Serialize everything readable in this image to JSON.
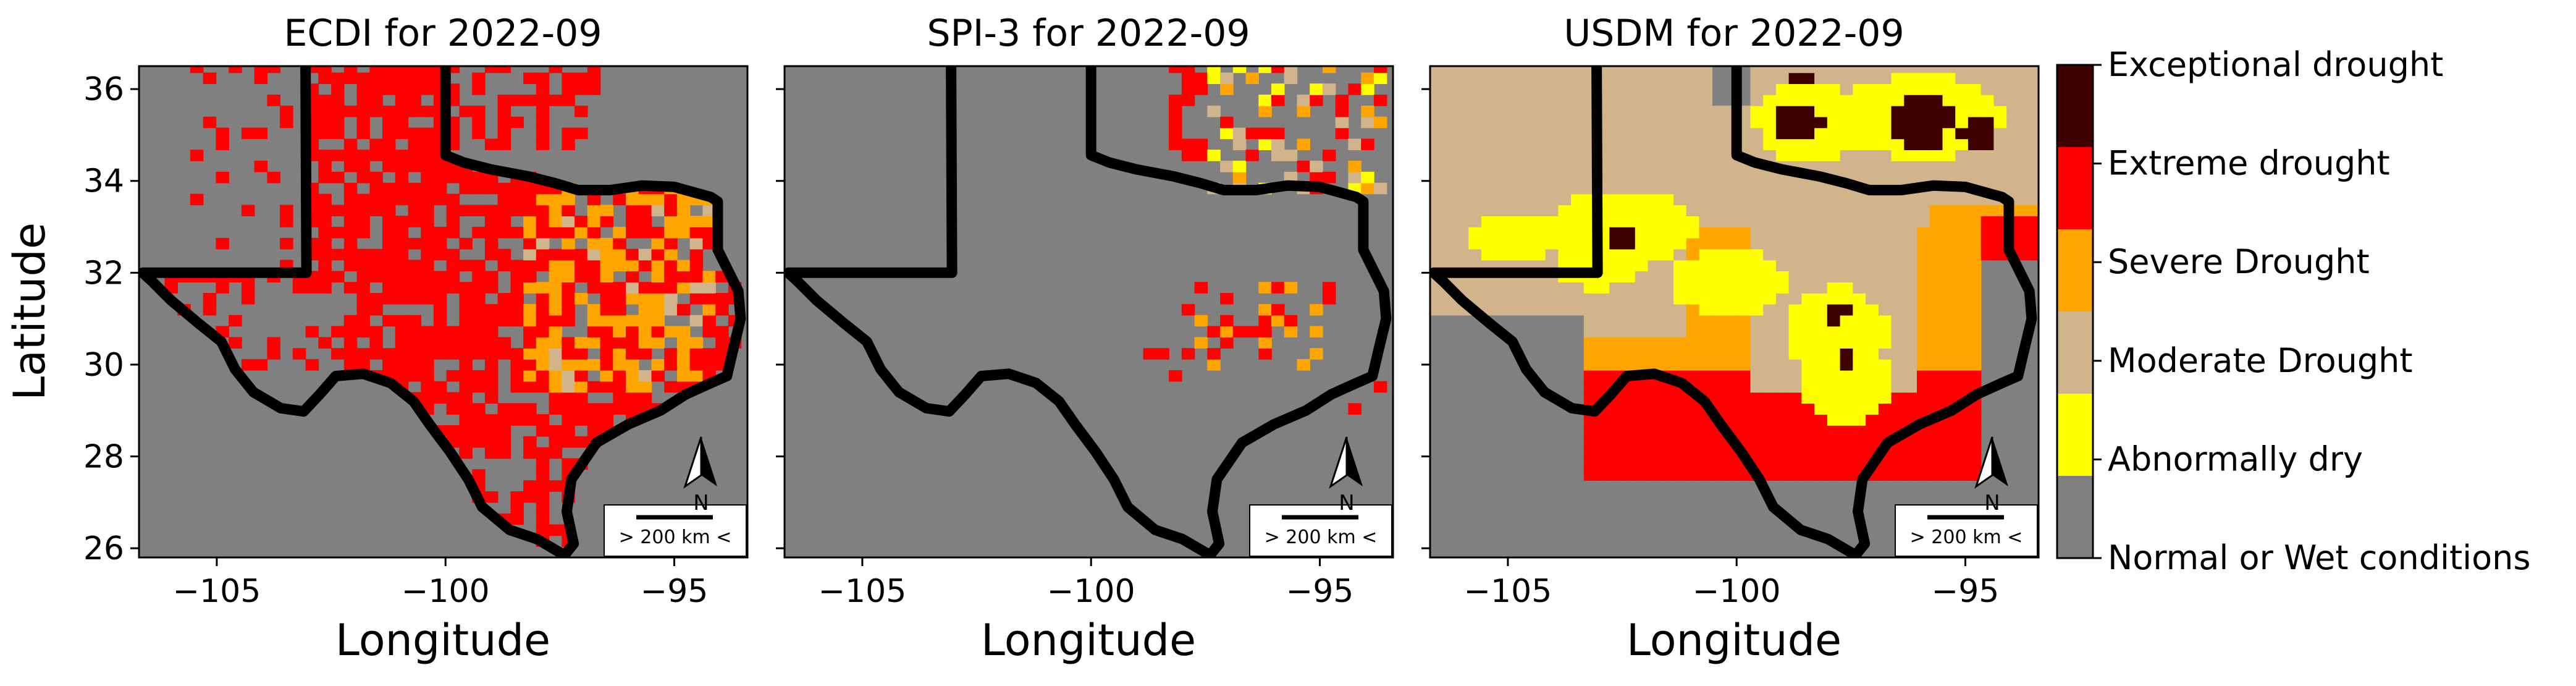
{
  "figure": {
    "ylabel": "Latitude",
    "xlabel": "Longitude"
  },
  "chart_data": [
    {
      "type": "heatmap",
      "title": "ECDI for 2022-09",
      "xlabel": "Longitude",
      "ylabel": "Latitude",
      "xlim": [
        -106.7,
        -93.4
      ],
      "ylim": [
        25.8,
        36.5
      ],
      "x_ticks": [
        -105,
        -100,
        -95
      ],
      "y_ticks": [
        26,
        28,
        30,
        32,
        34,
        36
      ],
      "x_tick_labels": [
        "−105",
        "−100",
        "−95"
      ],
      "y_tick_labels": [
        "26",
        "28",
        "30",
        "32",
        "34",
        "36"
      ],
      "scalebar_label": "> 200 km <",
      "north_label": "N",
      "scene": "ecdi"
    },
    {
      "type": "heatmap",
      "title": "SPI-3 for 2022-09",
      "xlabel": "Longitude",
      "xlim": [
        -106.7,
        -93.4
      ],
      "ylim": [
        25.8,
        36.5
      ],
      "x_ticks": [
        -105,
        -100,
        -95
      ],
      "x_tick_labels": [
        "−105",
        "−100",
        "−95"
      ],
      "scalebar_label": "> 200 km <",
      "north_label": "N",
      "scene": "spi"
    },
    {
      "type": "heatmap",
      "title": "USDM for 2022-09",
      "xlabel": "Longitude",
      "xlim": [
        -106.7,
        -93.4
      ],
      "ylim": [
        25.8,
        36.5
      ],
      "x_ticks": [
        -105,
        -100,
        -95
      ],
      "x_tick_labels": [
        "−105",
        "−100",
        "−95"
      ],
      "scalebar_label": "> 200 km <",
      "north_label": "N",
      "scene": "usdm"
    }
  ],
  "legend": {
    "placement": "right colorbar",
    "categories": [
      {
        "label": "Exceptional drought",
        "color": "#3f0000"
      },
      {
        "label": "Extreme drought",
        "color": "#ff0000"
      },
      {
        "label": "Severe Drought",
        "color": "#ffa500"
      },
      {
        "label": "Moderate Drought",
        "color": "#d2b48c"
      },
      {
        "label": "Abnormally dry",
        "color": "#ffff00"
      },
      {
        "label": "Normal or Wet conditions",
        "color": "#808080"
      }
    ]
  }
}
